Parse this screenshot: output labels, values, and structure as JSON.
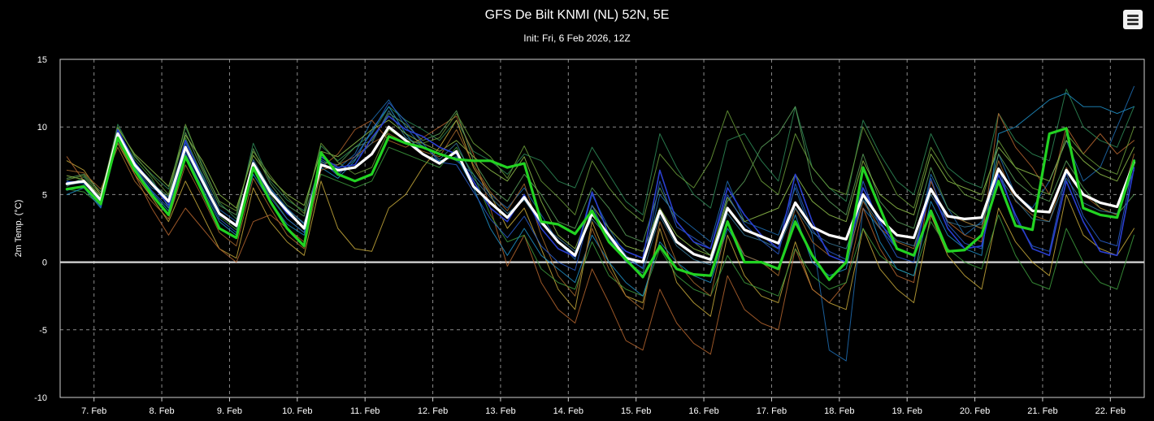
{
  "header": {
    "title": "GFS De Bilt KNMI (NL) 52N, 5E",
    "subtitle": "Init: Fri, 6 Feb 2026, 12Z",
    "menu_icon": "hamburger-menu-icon"
  },
  "chart_data": {
    "type": "line",
    "title": "GFS De Bilt KNMI (NL) 52N, 5E",
    "subtitle": "Init: Fri, 6 Feb 2026, 12Z",
    "ylabel": "2m Temp. (°C)",
    "xlabel": "",
    "ylim": [
      -10,
      15
    ],
    "yticks": [
      15,
      10,
      5,
      0,
      -5,
      -10
    ],
    "xlim": [
      0,
      16
    ],
    "xtick_labels": [
      "7. Feb",
      "8. Feb",
      "9. Feb",
      "10. Feb",
      "11. Feb",
      "12. Feb",
      "13. Feb",
      "14. Feb",
      "15. Feb",
      "16. Feb",
      "17. Feb",
      "18. Feb",
      "19. Feb",
      "20. Feb",
      "21. Feb",
      "22. Feb"
    ],
    "x_step_hours": 6,
    "grid": true,
    "legend": "none",
    "colors": {
      "background": "#000000",
      "grid": "#8a8a8a",
      "zero_line": "#d8d8d8",
      "ensemble_palette": [
        "#2e8b57",
        "#3d9c3d",
        "#1f6fb5",
        "#2a5fd0",
        "#c7a93a",
        "#b5652e",
        "#5aa05a",
        "#1e90c8",
        "#8fbf4a",
        "#a86b2d",
        "#3a7a9a",
        "#6b9e3a"
      ]
    },
    "series": [
      {
        "role": "ensemble-mean",
        "color": "#ffffff",
        "width": 3.2,
        "values": [
          5.8,
          6.0,
          4.6,
          9.5,
          7.2,
          5.8,
          4.5,
          8.5,
          6.0,
          3.6,
          2.7,
          7.3,
          5.2,
          3.8,
          2.5,
          7.2,
          6.8,
          7.0,
          8.0,
          10.0,
          9.0,
          8.0,
          7.3,
          8.2,
          5.6,
          4.4,
          3.3,
          4.8,
          3.0,
          1.5,
          0.5,
          3.6,
          2.0,
          0.3,
          0.0,
          3.8,
          1.5,
          0.6,
          0.2,
          4.0,
          2.4,
          1.9,
          1.4,
          4.4,
          2.6,
          2.0,
          1.7,
          5.0,
          3.2,
          2.0,
          1.8,
          5.4,
          3.4,
          3.2,
          3.3,
          6.9,
          5.0,
          3.8,
          3.7,
          6.8,
          5.0,
          4.4,
          4.1,
          7.4
        ]
      },
      {
        "role": "operational",
        "color": "#22d322",
        "width": 3.2,
        "values": [
          5.4,
          5.6,
          4.3,
          9.2,
          6.8,
          5.0,
          3.5,
          7.8,
          5.2,
          2.5,
          1.8,
          7.0,
          4.5,
          2.5,
          1.2,
          8.1,
          6.5,
          6.0,
          6.5,
          9.3,
          8.8,
          8.5,
          8.0,
          7.6,
          7.5,
          7.5,
          7.0,
          7.3,
          3.0,
          2.8,
          2.1,
          3.8,
          1.5,
          0.2,
          -1.1,
          1.2,
          -0.5,
          -0.9,
          -1.0,
          3.0,
          0.0,
          0.0,
          -0.5,
          3.0,
          0.5,
          -1.3,
          0.0,
          7.0,
          4.0,
          1.0,
          0.5,
          3.8,
          0.8,
          0.9,
          2.0,
          6.0,
          2.7,
          2.4,
          9.5,
          9.9,
          4.0,
          3.5,
          3.3,
          7.5
        ]
      },
      {
        "role": "ensemble",
        "color": "#2a3fd0",
        "width": 1.6,
        "values": [
          5.9,
          6.0,
          4.5,
          9.8,
          7.4,
          5.8,
          4.2,
          9.0,
          6.2,
          3.5,
          2.8,
          7.4,
          5.2,
          3.6,
          2.6,
          7.8,
          7.0,
          7.2,
          9.2,
          10.8,
          9.8,
          9.3,
          8.5,
          8.0,
          6.0,
          4.0,
          3.0,
          5.0,
          2.5,
          1.0,
          0.4,
          5.2,
          2.0,
          0.8,
          0.3,
          6.8,
          3.0,
          1.5,
          1.0,
          5.5,
          3.5,
          2.0,
          1.0,
          6.5,
          3.0,
          0.5,
          0.0,
          5.5,
          3.0,
          1.0,
          0.5,
          5.5,
          2.5,
          1.0,
          1.2,
          6.5,
          3.5,
          1.0,
          0.5,
          6.0,
          3.0,
          0.8,
          0.5,
          7.0
        ]
      },
      {
        "role": "ensemble",
        "color": "#1f6fb5",
        "width": 1.0,
        "values": [
          6.0,
          5.8,
          4.7,
          9.6,
          7.0,
          5.5,
          4.8,
          8.8,
          6.5,
          3.9,
          3.0,
          7.0,
          5.5,
          4.0,
          2.8,
          7.6,
          6.9,
          8.0,
          10.5,
          12.0,
          10.0,
          8.5,
          8.0,
          7.5,
          6.5,
          5.0,
          4.0,
          5.5,
          3.5,
          1.5,
          0.2,
          5.0,
          2.5,
          0.5,
          -0.5,
          5.0,
          3.5,
          2.5,
          1.5,
          6.0,
          3.0,
          2.5,
          2.0,
          5.5,
          2.0,
          -6.5,
          -7.3,
          4.0,
          2.5,
          1.0,
          0.5,
          6.5,
          4.0,
          2.0,
          3.0,
          8.0,
          5.0,
          4.0,
          6.0,
          9.0,
          6.0,
          7.0,
          10.0,
          13.0
        ]
      },
      {
        "role": "ensemble",
        "color": "#2e8b57",
        "width": 1.0,
        "values": [
          5.6,
          6.3,
          4.8,
          10.2,
          7.8,
          6.5,
          5.4,
          10.0,
          7.2,
          4.4,
          3.2,
          8.8,
          6.0,
          4.6,
          3.8,
          8.6,
          7.5,
          8.5,
          9.5,
          11.5,
          10.5,
          9.8,
          9.0,
          10.5,
          8.2,
          7.5,
          6.5,
          8.0,
          7.5,
          6.0,
          5.5,
          8.5,
          6.5,
          4.5,
          3.5,
          9.5,
          7.0,
          5.0,
          4.0,
          9.0,
          9.5,
          7.5,
          6.0,
          11.5,
          7.0,
          5.5,
          4.5,
          10.5,
          8.0,
          6.0,
          5.0,
          9.5,
          7.0,
          6.0,
          5.5,
          11.0,
          9.0,
          8.0,
          7.5,
          12.8,
          10.0,
          9.0,
          8.5,
          11.5
        ]
      },
      {
        "role": "ensemble",
        "color": "#c7a93a",
        "width": 1.0,
        "values": [
          7.5,
          6.8,
          5.0,
          8.8,
          6.5,
          4.8,
          3.0,
          6.0,
          3.5,
          1.0,
          0.3,
          5.5,
          3.0,
          1.5,
          0.5,
          6.0,
          2.5,
          1.0,
          0.8,
          4.0,
          5.0,
          7.0,
          8.5,
          10.5,
          7.0,
          5.0,
          2.5,
          4.0,
          1.0,
          -2.0,
          -3.5,
          3.0,
          0.0,
          -2.5,
          -3.0,
          2.5,
          -1.5,
          -3.0,
          -4.0,
          2.0,
          -1.0,
          -2.5,
          -3.0,
          1.5,
          -2.0,
          -3.0,
          -3.5,
          2.5,
          -0.5,
          -2.0,
          -3.0,
          3.5,
          0.5,
          -1.0,
          -2.0,
          4.0,
          1.5,
          0.0,
          -1.0,
          5.0,
          2.0,
          1.0,
          0.5,
          2.5
        ]
      },
      {
        "role": "ensemble",
        "color": "#b5652e",
        "width": 1.0,
        "values": [
          7.8,
          6.0,
          4.5,
          9.0,
          6.5,
          4.0,
          2.0,
          4.0,
          2.5,
          1.0,
          0.0,
          3.0,
          3.5,
          2.5,
          1.5,
          7.0,
          8.0,
          9.8,
          10.5,
          9.0,
          8.5,
          9.2,
          10.0,
          10.8,
          8.0,
          4.0,
          -0.3,
          2.0,
          -1.5,
          -3.5,
          -4.5,
          -0.5,
          -3.0,
          -5.8,
          -6.5,
          -2.0,
          -4.5,
          -6.0,
          -6.8,
          -1.0,
          -3.5,
          -4.5,
          -5.0,
          1.0,
          -2.0,
          -3.0,
          -1.5,
          4.0,
          1.0,
          -1.0,
          -1.5,
          6.0,
          3.0,
          2.0,
          1.5,
          11.0,
          8.5,
          7.0,
          5.0,
          10.0,
          8.0,
          9.5,
          8.0,
          9.0
        ]
      },
      {
        "role": "ensemble",
        "color": "#5aa05a",
        "width": 1.0,
        "values": [
          6.2,
          6.5,
          5.2,
          9.4,
          7.0,
          5.8,
          4.9,
          9.6,
          6.8,
          4.2,
          3.5,
          8.4,
          5.8,
          4.2,
          3.4,
          7.4,
          7.2,
          8.5,
          9.0,
          11.0,
          10.2,
          9.0,
          9.5,
          11.2,
          7.5,
          5.5,
          4.5,
          6.5,
          5.0,
          3.0,
          2.5,
          5.5,
          4.0,
          2.0,
          1.5,
          5.5,
          3.0,
          1.5,
          0.5,
          4.5,
          6.0,
          8.5,
          9.5,
          11.5,
          6.0,
          4.5,
          3.5,
          8.0,
          4.5,
          3.0,
          2.5,
          7.0,
          4.0,
          3.0,
          2.5,
          8.0,
          6.0,
          5.0,
          4.5,
          7.5,
          5.5,
          4.0,
          3.5,
          5.0
        ]
      },
      {
        "role": "ensemble",
        "color": "#3d9c3d",
        "width": 1.0,
        "values": [
          5.4,
          5.2,
          4.2,
          9.7,
          7.6,
          6.2,
          4.0,
          9.2,
          6.4,
          3.4,
          2.4,
          6.8,
          5.0,
          3.2,
          2.2,
          6.5,
          6.0,
          5.5,
          6.0,
          8.5,
          8.0,
          7.5,
          7.0,
          8.5,
          6.5,
          3.5,
          1.5,
          2.0,
          -0.5,
          -1.5,
          -2.0,
          1.5,
          -1.0,
          -2.0,
          -2.5,
          1.0,
          -1.0,
          -2.0,
          -2.5,
          0.5,
          -1.5,
          -2.0,
          -2.5,
          1.0,
          -1.0,
          -2.0,
          -1.5,
          2.5,
          0.5,
          -0.5,
          -1.0,
          3.0,
          1.0,
          0.0,
          -0.5,
          3.5,
          0.5,
          -1.5,
          -2.0,
          2.5,
          0.0,
          -1.5,
          -2.0,
          2.0
        ]
      },
      {
        "role": "ensemble",
        "color": "#1e90c8",
        "width": 1.0,
        "values": [
          5.0,
          5.5,
          4.0,
          9.0,
          7.0,
          5.2,
          3.8,
          8.0,
          5.5,
          3.0,
          2.0,
          6.5,
          4.5,
          2.8,
          2.0,
          7.0,
          6.2,
          7.5,
          9.8,
          11.5,
          9.5,
          8.0,
          7.5,
          7.8,
          5.5,
          2.5,
          0.5,
          2.5,
          0.5,
          -0.5,
          -1.5,
          2.0,
          0.0,
          -1.5,
          -2.5,
          1.5,
          0.0,
          -1.0,
          -1.5,
          2.5,
          0.5,
          0.0,
          -0.5,
          3.5,
          0.0,
          -1.0,
          -0.5,
          5.0,
          1.5,
          -0.5,
          -1.0,
          4.5,
          2.0,
          1.0,
          0.5,
          9.5,
          10.0,
          11.0,
          12.0,
          12.5,
          11.5,
          11.5,
          11.0,
          11.5
        ]
      },
      {
        "role": "ensemble",
        "color": "#8fbf4a",
        "width": 1.0,
        "values": [
          6.4,
          6.1,
          4.9,
          9.9,
          8.0,
          6.8,
          5.6,
          9.4,
          7.5,
          5.0,
          4.0,
          7.9,
          6.2,
          5.0,
          4.2,
          8.2,
          7.8,
          8.8,
          9.8,
          10.5,
          9.5,
          8.8,
          8.2,
          9.0,
          7.8,
          6.8,
          6.0,
          7.8,
          4.5,
          2.0,
          1.0,
          4.2,
          2.5,
          1.2,
          0.8,
          4.0,
          2.0,
          1.0,
          0.5,
          4.8,
          3.0,
          3.5,
          4.0,
          6.5,
          4.5,
          3.5,
          3.0,
          7.5,
          5.0,
          4.0,
          3.5,
          8.0,
          6.0,
          5.5,
          5.0,
          8.5,
          7.0,
          6.5,
          6.0,
          9.0,
          7.5,
          6.5,
          6.0,
          8.5
        ]
      },
      {
        "role": "ensemble",
        "color": "#a86b2d",
        "width": 1.0,
        "values": [
          6.8,
          6.6,
          5.4,
          8.5,
          6.0,
          4.5,
          3.2,
          7.2,
          4.8,
          2.2,
          1.2,
          6.2,
          4.0,
          2.0,
          1.0,
          6.8,
          7.2,
          7.8,
          8.8,
          9.5,
          8.8,
          8.2,
          7.8,
          9.8,
          7.2,
          5.2,
          3.8,
          5.8,
          2.0,
          -1.0,
          -2.5,
          2.5,
          -0.5,
          -2.5,
          -3.5,
          3.0,
          0.0,
          -1.5,
          -2.5,
          3.0,
          0.5,
          0.0,
          -1.0,
          4.0,
          1.5,
          0.5,
          0.0,
          4.5,
          2.5,
          1.5,
          1.0,
          5.5,
          3.5,
          3.0,
          2.5,
          7.5,
          4.5,
          3.5,
          3.0,
          7.0,
          5.0,
          4.0,
          3.5,
          8.0
        ]
      },
      {
        "role": "ensemble",
        "color": "#3a7a9a",
        "width": 1.0,
        "values": [
          5.7,
          5.9,
          4.4,
          9.3,
          7.3,
          6.0,
          4.6,
          8.6,
          6.1,
          3.7,
          2.6,
          7.6,
          5.4,
          3.9,
          2.9,
          7.3,
          6.6,
          7.6,
          8.8,
          11.2,
          9.2,
          8.6,
          7.6,
          8.8,
          6.2,
          4.8,
          3.6,
          4.6,
          2.8,
          1.8,
          0.8,
          3.2,
          1.8,
          0.0,
          -0.8,
          3.4,
          1.2,
          0.2,
          -0.2,
          3.6,
          2.0,
          1.6,
          1.0,
          4.0,
          2.2,
          1.4,
          1.0,
          4.6,
          2.8,
          1.6,
          1.2,
          5.0,
          3.0,
          2.6,
          2.8,
          6.4,
          4.6,
          3.2,
          3.0,
          6.2,
          4.4,
          3.8,
          3.6,
          6.8
        ]
      },
      {
        "role": "ensemble",
        "color": "#6b9e3a",
        "width": 1.0,
        "values": [
          6.1,
          6.4,
          5.0,
          10.0,
          7.9,
          6.4,
          5.0,
          10.2,
          7.0,
          4.5,
          3.8,
          8.2,
          6.4,
          4.8,
          3.6,
          8.8,
          7.4,
          6.5,
          7.0,
          9.8,
          9.0,
          8.8,
          9.2,
          11.0,
          8.8,
          7.8,
          6.2,
          8.6,
          6.0,
          4.8,
          3.5,
          7.5,
          5.5,
          4.0,
          3.0,
          8.0,
          6.5,
          5.5,
          7.5,
          11.2,
          8.5,
          6.0,
          5.0,
          9.5,
          7.0,
          5.5,
          5.0,
          10.0,
          7.5,
          5.0,
          4.0,
          8.5,
          6.5,
          5.0,
          4.5,
          9.0,
          7.0,
          5.5,
          5.0,
          9.5,
          8.0,
          7.0,
          6.5,
          10.0
        ]
      },
      {
        "role": "ensemble",
        "color": "#2a5fd0",
        "width": 1.0,
        "values": [
          5.3,
          5.7,
          4.1,
          9.1,
          6.9,
          5.3,
          4.0,
          8.2,
          5.8,
          3.2,
          2.2,
          7.2,
          4.8,
          3.2,
          2.2,
          7.5,
          6.4,
          7.8,
          9.6,
          11.8,
          10.4,
          8.8,
          7.4,
          7.2,
          5.2,
          3.2,
          1.8,
          3.4,
          1.2,
          0.0,
          -0.6,
          4.2,
          1.6,
          0.2,
          -0.4,
          6.0,
          2.6,
          1.8,
          1.0,
          5.0,
          2.8,
          1.6,
          0.6,
          5.8,
          2.4,
          0.8,
          0.2,
          6.0,
          2.6,
          0.4,
          0.0,
          6.2,
          2.8,
          1.4,
          1.0,
          7.0,
          3.2,
          1.2,
          0.8,
          6.6,
          3.4,
          1.6,
          1.2,
          7.6
        ]
      }
    ]
  }
}
